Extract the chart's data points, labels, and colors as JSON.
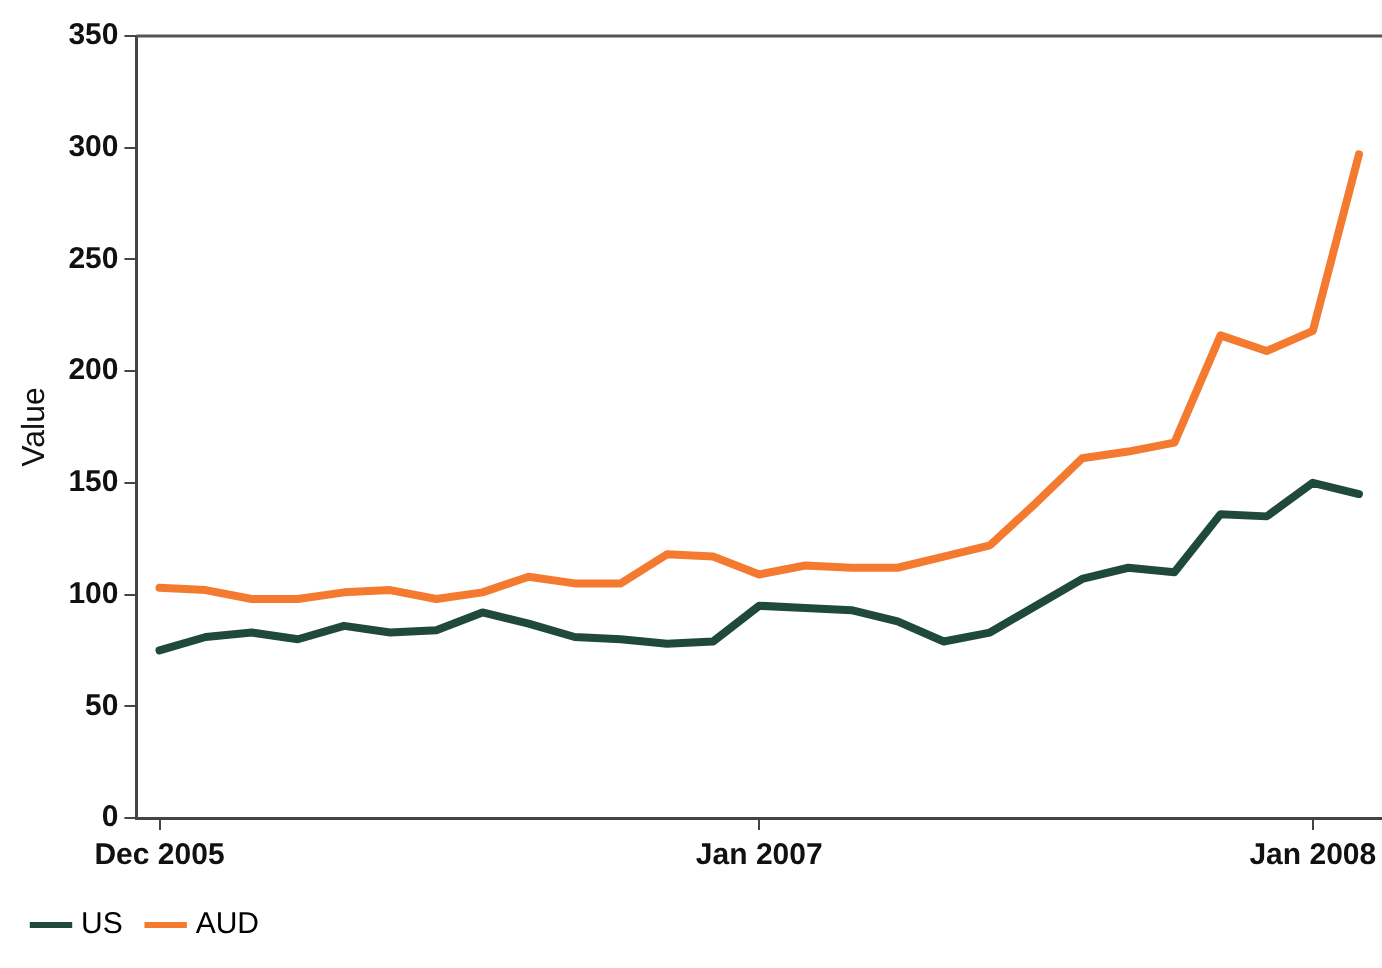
{
  "chart_data": {
    "type": "line",
    "ylabel": "Value",
    "categories": [
      "Dec 2005",
      null,
      null,
      null,
      null,
      null,
      null,
      null,
      null,
      null,
      null,
      null,
      null,
      "Jan 2007",
      null,
      null,
      null,
      null,
      null,
      null,
      null,
      null,
      null,
      null,
      null,
      "Jan 2008",
      null
    ],
    "series": [
      {
        "name": "US",
        "color": "#1f4a3a",
        "values": [
          75,
          81,
          83,
          80,
          86,
          83,
          84,
          92,
          87,
          81,
          80,
          78,
          79,
          95,
          94,
          93,
          88,
          79,
          83,
          95,
          107,
          112,
          110,
          136,
          135,
          150,
          145
        ]
      },
      {
        "name": "AUD",
        "color": "#f47a30",
        "values": [
          103,
          102,
          98,
          98,
          101,
          102,
          98,
          101,
          108,
          105,
          105,
          118,
          117,
          109,
          113,
          112,
          112,
          117,
          122,
          141,
          161,
          164,
          168,
          216,
          209,
          218,
          297
        ]
      }
    ],
    "ylim": [
      0,
      350
    ],
    "yticks": [
      0,
      50,
      100,
      150,
      200,
      250,
      300,
      350
    ],
    "grid": false,
    "legend": "bottom",
    "marker": "none",
    "line_style": "solid"
  }
}
